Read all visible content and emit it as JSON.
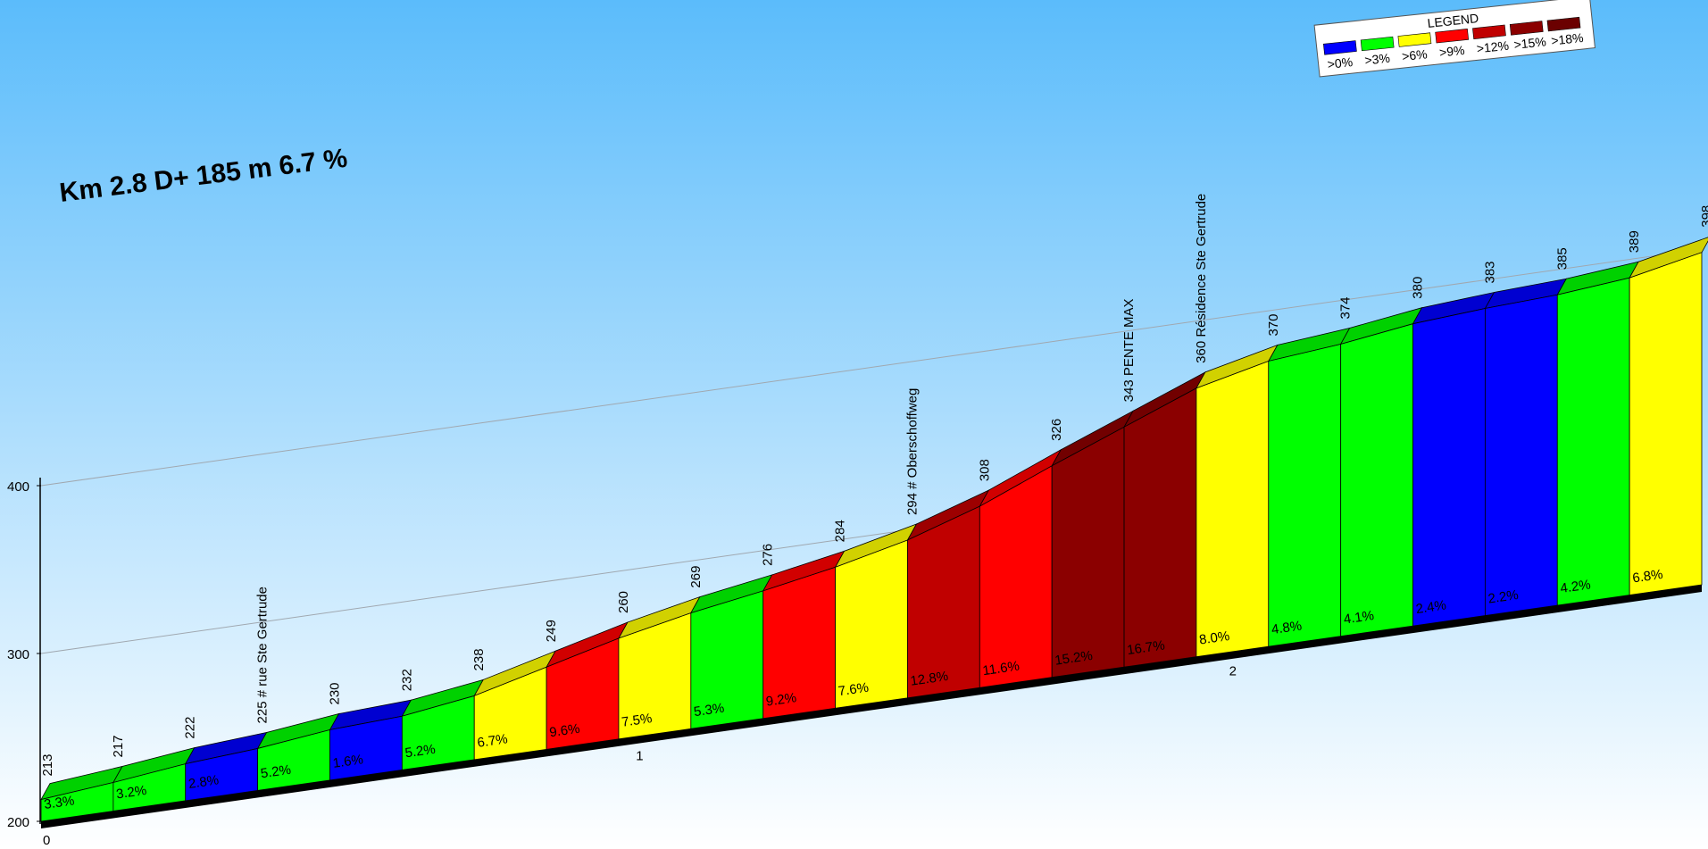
{
  "chart_data": {
    "type": "bar",
    "title": "Km 2.8 D+ 185 m 6.7 %",
    "ylim": [
      200,
      400
    ],
    "y_ticks": [
      200,
      300,
      400
    ],
    "x_ticks": [
      "0",
      "1",
      "2"
    ],
    "start_elevation": "213",
    "segments": [
      {
        "end_label": "217",
        "grade": "3.3%",
        "color": "#00ff00",
        "z": 217
      },
      {
        "end_label": "222",
        "grade": "3.2%",
        "color": "#00ff00",
        "z": 222
      },
      {
        "end_label": "225 # rue Ste Gertrude",
        "grade": "2.8%",
        "color": "#0000ff",
        "z": 225
      },
      {
        "end_label": "230",
        "grade": "5.2%",
        "color": "#00ff00",
        "z": 230
      },
      {
        "end_label": "232",
        "grade": "1.6%",
        "color": "#0000ff",
        "z": 232
      },
      {
        "end_label": "238",
        "grade": "5.2%",
        "color": "#00ff00",
        "z": 238
      },
      {
        "end_label": "249",
        "grade": "6.7%",
        "color": "#ffff00",
        "z": 249
      },
      {
        "end_label": "260",
        "grade": "9.6%",
        "color": "#ff0000",
        "z": 260
      },
      {
        "end_label": "269",
        "grade": "7.5%",
        "color": "#ffff00",
        "z": 269
      },
      {
        "end_label": "276",
        "grade": "5.3%",
        "color": "#00ff00",
        "z": 276
      },
      {
        "end_label": "284",
        "grade": "9.2%",
        "color": "#ff0000",
        "z": 284
      },
      {
        "end_label": "294 # Oberschoffweg",
        "grade": "7.6%",
        "color": "#ffff00",
        "z": 294
      },
      {
        "end_label": "308",
        "grade": "12.8%",
        "color": "#c00000",
        "z": 308
      },
      {
        "end_label": "326",
        "grade": "11.6%",
        "color": "#ff0000",
        "z": 326
      },
      {
        "end_label": "343 PENTE MAX",
        "grade": "15.2%",
        "color": "#8b0000",
        "z": 343
      },
      {
        "end_label": "360 Résidence Ste Gertrude",
        "grade": "16.7%",
        "color": "#8b0000",
        "z": 360
      },
      {
        "end_label": "370",
        "grade": "8.0%",
        "color": "#ffff00",
        "z": 370
      },
      {
        "end_label": "374",
        "grade": "4.8%",
        "color": "#00ff00",
        "z": 374
      },
      {
        "end_label": "380",
        "grade": "4.1%",
        "color": "#00ff00",
        "z": 380
      },
      {
        "end_label": "383",
        "grade": "2.4%",
        "color": "#0000ff",
        "z": 383
      },
      {
        "end_label": "385",
        "grade": "2.2%",
        "color": "#0000ff",
        "z": 385
      },
      {
        "end_label": "389",
        "grade": "4.2%",
        "color": "#00ff00",
        "z": 389
      },
      {
        "end_label": "398",
        "grade": "6.8%",
        "color": "#ffff00",
        "z": 398
      }
    ],
    "legend": {
      "title": "LEGEND",
      "placement": "top-right",
      "items": [
        {
          "label": ">0%",
          "color": "#0000ff"
        },
        {
          "label": ">3%",
          "color": "#00ff00"
        },
        {
          "label": ">6%",
          "color": "#ffff00"
        },
        {
          "label": ">9%",
          "color": "#ff0000"
        },
        {
          "label": ">12%",
          "color": "#c00000"
        },
        {
          "label": ">15%",
          "color": "#8b0000"
        },
        {
          "label": ">18%",
          "color": "#6b0000"
        }
      ]
    },
    "colors": {
      "sky_top": "#5bbcfb",
      "sky_bottom": "#ffffff"
    }
  }
}
